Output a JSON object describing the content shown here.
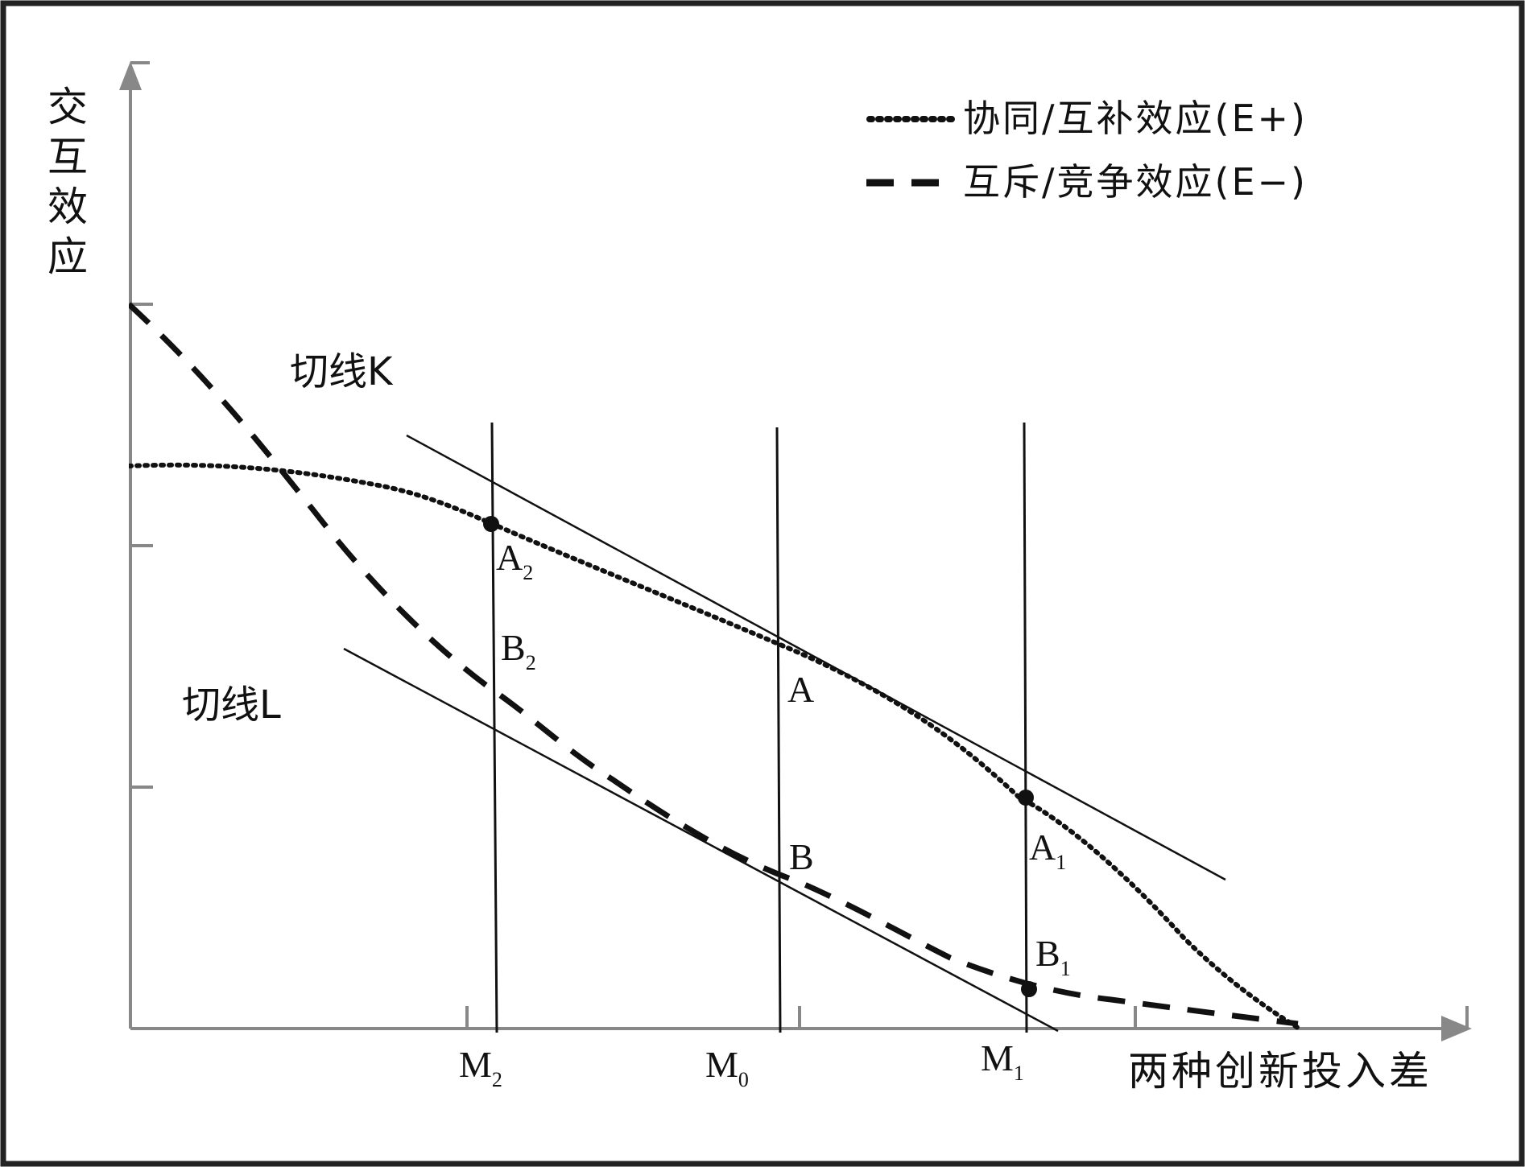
{
  "y_axis_label": "交互效应",
  "x_axis_label": "两种创新投入差",
  "legend": [
    {
      "label": "协同/互补效应(E+)",
      "style": "dotted"
    },
    {
      "label": "互斥/竞争效应(E−)",
      "style": "dashed"
    }
  ],
  "tangent_k_label": "切线K",
  "tangent_l_label": "切线L",
  "x_ticks": [
    {
      "main": "M",
      "sub": "2"
    },
    {
      "main": "M",
      "sub": "0"
    },
    {
      "main": "M",
      "sub": "1"
    }
  ],
  "points": {
    "a2": {
      "main": "A",
      "sub": "2"
    },
    "b2": {
      "main": "B",
      "sub": "2"
    },
    "a": {
      "main": "A",
      "sub": ""
    },
    "b": {
      "main": "B",
      "sub": ""
    },
    "a1": {
      "main": "A",
      "sub": "1"
    },
    "b1": {
      "main": "B",
      "sub": "1"
    }
  },
  "colors": {
    "frame": "#222222",
    "axis": "#888888",
    "ink": "#111111"
  }
}
